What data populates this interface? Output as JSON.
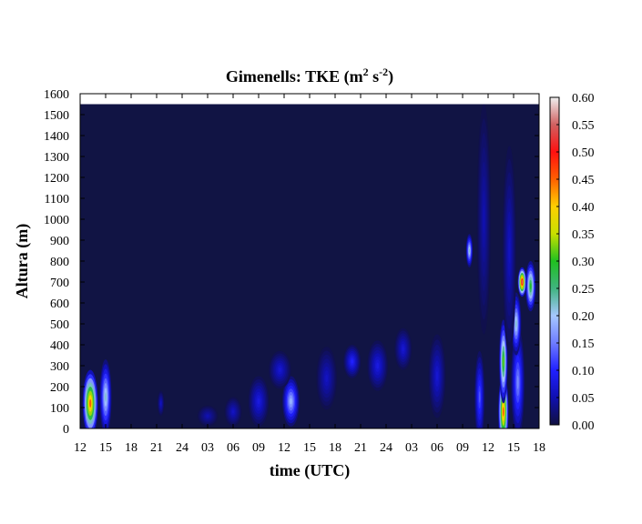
{
  "chart_data": {
    "type": "heatmap",
    "title_text": "Gimenells: TKE (m",
    "title_sup1": "2",
    "title_mid": " s",
    "title_sup2": "-2",
    "title_end": ")",
    "xlabel": "time (UTC)",
    "ylabel": "Altura (m)",
    "x_ticks": [
      "12",
      "15",
      "18",
      "21",
      "24",
      "03",
      "06",
      "09",
      "12",
      "15",
      "18",
      "21",
      "24",
      "03",
      "06",
      "09",
      "12",
      "15",
      "18"
    ],
    "y_ticks": [
      "0",
      "100",
      "200",
      "300",
      "400",
      "500",
      "600",
      "700",
      "800",
      "900",
      "1000",
      "1100",
      "1200",
      "1300",
      "1400",
      "1500",
      "1600"
    ],
    "ylim": [
      0,
      1600
    ],
    "xlim_hours": [
      12,
      66
    ],
    "data_top_height": 1550,
    "colorbar": {
      "ticks": [
        "0.00",
        "0.05",
        "0.10",
        "0.15",
        "0.20",
        "0.25",
        "0.30",
        "0.35",
        "0.40",
        "0.45",
        "0.50",
        "0.55",
        "0.60"
      ],
      "range": [
        0,
        0.6
      ],
      "colors": [
        "#101040",
        "#1010b0",
        "#2020ff",
        "#6e7cff",
        "#a6c8ff",
        "#40b480",
        "#20c020",
        "#c8e000",
        "#ffd000",
        "#ff6000",
        "#ff1010",
        "#d06060",
        "#f0f0f0"
      ]
    },
    "background_color": "#111444",
    "blobs": [
      {
        "t": 13.2,
        "h": 120,
        "dt": 0.9,
        "dh": 160,
        "v": 0.45
      },
      {
        "t": 15.0,
        "h": 150,
        "dt": 0.7,
        "dh": 180,
        "v": 0.22
      },
      {
        "t": 21.5,
        "h": 120,
        "dt": 0.4,
        "dh": 60,
        "v": 0.06
      },
      {
        "t": 27.0,
        "h": 60,
        "dt": 1.2,
        "dh": 50,
        "v": 0.05
      },
      {
        "t": 30.0,
        "h": 80,
        "dt": 1.0,
        "dh": 70,
        "v": 0.06
      },
      {
        "t": 33.0,
        "h": 130,
        "dt": 1.2,
        "dh": 120,
        "v": 0.08
      },
      {
        "t": 36.8,
        "h": 130,
        "dt": 1.0,
        "dh": 120,
        "v": 0.19
      },
      {
        "t": 35.5,
        "h": 280,
        "dt": 1.3,
        "dh": 90,
        "v": 0.07
      },
      {
        "t": 41.0,
        "h": 240,
        "dt": 1.2,
        "dh": 150,
        "v": 0.06
      },
      {
        "t": 44.0,
        "h": 320,
        "dt": 1.0,
        "dh": 80,
        "v": 0.1
      },
      {
        "t": 47.0,
        "h": 300,
        "dt": 1.2,
        "dh": 120,
        "v": 0.08
      },
      {
        "t": 50.0,
        "h": 380,
        "dt": 1.0,
        "dh": 100,
        "v": 0.07
      },
      {
        "t": 54.0,
        "h": 250,
        "dt": 1.0,
        "dh": 200,
        "v": 0.07
      },
      {
        "t": 59.0,
        "h": 150,
        "dt": 0.6,
        "dh": 220,
        "v": 0.13
      },
      {
        "t": 61.8,
        "h": 80,
        "dt": 0.6,
        "dh": 180,
        "v": 0.46
      },
      {
        "t": 61.8,
        "h": 320,
        "dt": 0.5,
        "dh": 200,
        "v": 0.32
      },
      {
        "t": 63.5,
        "h": 220,
        "dt": 0.8,
        "dh": 260,
        "v": 0.16
      },
      {
        "t": 64.0,
        "h": 700,
        "dt": 0.5,
        "dh": 70,
        "v": 0.55
      },
      {
        "t": 65.0,
        "h": 680,
        "dt": 0.6,
        "dh": 120,
        "v": 0.3
      },
      {
        "t": 63.3,
        "h": 500,
        "dt": 0.6,
        "dh": 150,
        "v": 0.22
      },
      {
        "t": 62.5,
        "h": 850,
        "dt": 0.8,
        "dh": 500,
        "v": 0.06
      },
      {
        "t": 59.5,
        "h": 1000,
        "dt": 0.8,
        "dh": 550,
        "v": 0.05
      },
      {
        "t": 57.8,
        "h": 850,
        "dt": 0.4,
        "dh": 80,
        "v": 0.22
      }
    ]
  }
}
